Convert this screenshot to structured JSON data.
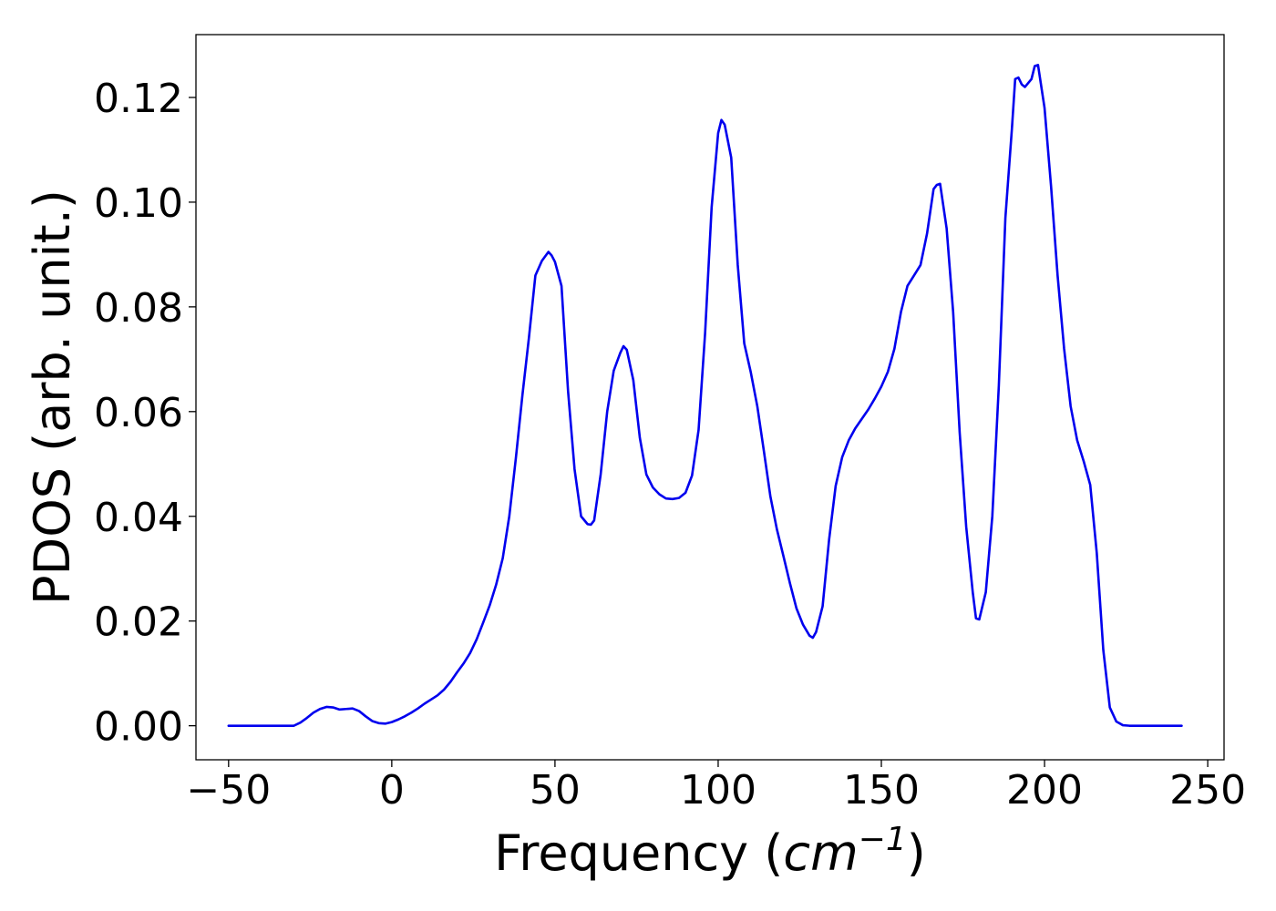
{
  "chart_data": {
    "type": "line",
    "title": "",
    "xlabel_prefix": "Frequency (",
    "xlabel_unit": "cm",
    "xlabel_exponent": "−1",
    "xlabel_suffix": ")",
    "ylabel": "PDOS (arb. unit.)",
    "xlim": [
      -60,
      255
    ],
    "ylim": [
      -0.0065,
      0.132
    ],
    "xticks": [
      -50,
      0,
      50,
      100,
      150,
      200,
      250
    ],
    "xtick_labels": [
      "−50",
      "0",
      "50",
      "100",
      "150",
      "200",
      "250"
    ],
    "yticks": [
      0.0,
      0.02,
      0.04,
      0.06,
      0.08,
      0.1,
      0.12
    ],
    "ytick_labels": [
      "0.00",
      "0.02",
      "0.04",
      "0.06",
      "0.08",
      "0.10",
      "0.12"
    ],
    "grid": false,
    "legend": false,
    "series": [
      {
        "color": "#0000ee",
        "x": [
          -50,
          -30,
          -28,
          -26,
          -24,
          -22,
          -20,
          -18,
          -16,
          -14,
          -12,
          -10,
          -8,
          -6,
          -4,
          -2,
          0,
          2,
          4,
          6,
          8,
          10,
          12,
          14,
          16,
          18,
          20,
          22,
          24,
          26,
          28,
          30,
          32,
          34,
          36,
          38,
          40,
          42,
          44,
          46,
          48,
          49,
          50,
          52,
          54,
          56,
          58,
          60,
          61,
          62,
          64,
          66,
          68,
          70,
          71,
          72,
          74,
          76,
          78,
          80,
          82,
          84,
          86,
          88,
          90,
          92,
          94,
          96,
          98,
          100,
          101,
          102,
          104,
          106,
          108,
          110,
          112,
          114,
          116,
          118,
          120,
          122,
          124,
          126,
          128,
          129,
          130,
          132,
          134,
          136,
          138,
          140,
          142,
          144,
          146,
          148,
          150,
          152,
          154,
          156,
          158,
          160,
          162,
          164,
          166,
          167,
          168,
          170,
          172,
          174,
          176,
          178,
          179,
          180,
          182,
          184,
          186,
          188,
          190,
          191,
          192,
          193,
          194,
          196,
          197,
          198,
          200,
          202,
          204,
          206,
          208,
          210,
          212,
          214,
          216,
          218,
          220,
          222,
          224,
          226,
          230,
          242
        ],
        "y": [
          0.0,
          0.0,
          0.0006,
          0.0015,
          0.0025,
          0.0032,
          0.0036,
          0.0035,
          0.0031,
          0.0032,
          0.0033,
          0.0028,
          0.0018,
          0.0009,
          0.0005,
          0.0004,
          0.0007,
          0.0012,
          0.0018,
          0.0025,
          0.0033,
          0.0042,
          0.005,
          0.0058,
          0.0069,
          0.0084,
          0.0102,
          0.0119,
          0.0139,
          0.0165,
          0.0197,
          0.023,
          0.027,
          0.032,
          0.04,
          0.051,
          0.063,
          0.074,
          0.086,
          0.0888,
          0.0905,
          0.0898,
          0.0886,
          0.084,
          0.064,
          0.049,
          0.04,
          0.0385,
          0.0384,
          0.0392,
          0.048,
          0.06,
          0.0678,
          0.0712,
          0.0725,
          0.0718,
          0.066,
          0.055,
          0.048,
          0.0455,
          0.0442,
          0.0434,
          0.0433,
          0.0435,
          0.0445,
          0.0478,
          0.0565,
          0.075,
          0.099,
          0.1132,
          0.1157,
          0.1148,
          0.1085,
          0.088,
          0.073,
          0.0675,
          0.061,
          0.0525,
          0.0438,
          0.0375,
          0.0324,
          0.0272,
          0.0224,
          0.0193,
          0.0172,
          0.0168,
          0.0179,
          0.0228,
          0.0356,
          0.0458,
          0.0513,
          0.0545,
          0.0568,
          0.0586,
          0.0604,
          0.0625,
          0.0648,
          0.0676,
          0.072,
          0.079,
          0.084,
          0.086,
          0.088,
          0.094,
          0.1025,
          0.1033,
          0.1035,
          0.095,
          0.079,
          0.056,
          0.038,
          0.0255,
          0.0205,
          0.0203,
          0.0255,
          0.04,
          0.065,
          0.097,
          0.114,
          0.1235,
          0.1238,
          0.1225,
          0.122,
          0.1235,
          0.126,
          0.1262,
          0.118,
          0.103,
          0.086,
          0.072,
          0.061,
          0.0545,
          0.0505,
          0.046,
          0.033,
          0.0145,
          0.0035,
          0.0008,
          0.0001,
          0.0,
          0.0,
          0.0
        ]
      }
    ]
  }
}
